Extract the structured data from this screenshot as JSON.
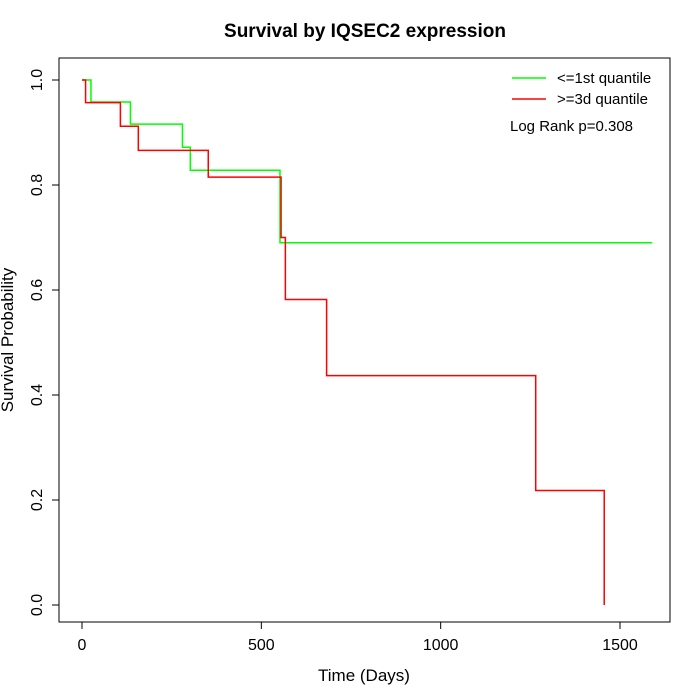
{
  "chart_data": {
    "type": "line",
    "step": true,
    "title": "Survival by IQSEC2 expression",
    "xlabel": "Time (Days)",
    "ylabel": "Survival Probability",
    "xlim": [
      0,
      1650
    ],
    "ylim": [
      0,
      1.0
    ],
    "xticks": [
      0,
      500,
      1000,
      1500
    ],
    "yticks": [
      0.0,
      0.2,
      0.4,
      0.6,
      0.8,
      1.0
    ],
    "xtick_labels": [
      "0",
      "500",
      "1000",
      "1500"
    ],
    "ytick_labels": [
      "0.0",
      "0.2",
      "0.4",
      "0.6",
      "0.8",
      "1.0"
    ],
    "grid": false,
    "legend_position": "top-right",
    "annotation": "Log Rank p=0.308",
    "series": [
      {
        "name": "<=1st quantile",
        "color": "#00ff00",
        "x": [
          0,
          25,
          135,
          280,
          302,
          552,
          1590
        ],
        "y": [
          1.0,
          0.958,
          0.916,
          0.872,
          0.828,
          0.69,
          0.69
        ]
      },
      {
        "name": ">=3d quantile",
        "color": "#ff0000",
        "x": [
          0,
          10,
          107,
          157,
          352,
          555,
          567,
          682,
          1265,
          1456,
          1456
        ],
        "y": [
          1.0,
          0.957,
          0.912,
          0.866,
          0.815,
          0.7,
          0.582,
          0.437,
          0.218,
          0.218,
          0.0
        ]
      }
    ]
  }
}
